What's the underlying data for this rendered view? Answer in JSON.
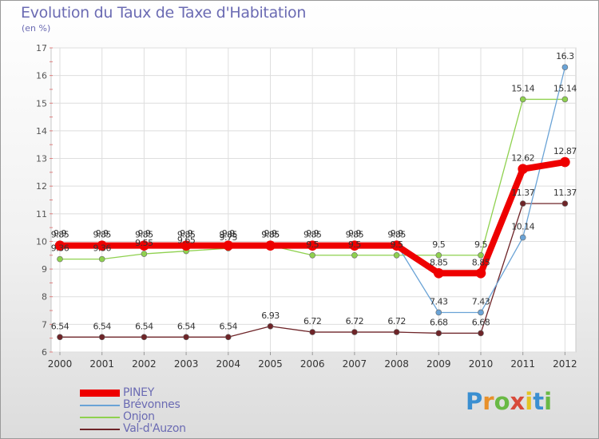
{
  "header": {
    "title": "Evolution du Taux de Taxe d'Habitation",
    "unit": "(en %)"
  },
  "brand": {
    "letters": [
      "P",
      "r",
      "o",
      "x",
      "i",
      "t",
      "i"
    ],
    "colors": [
      "#3a8fd1",
      "#e8902a",
      "#69b944",
      "#d84a3a",
      "#e3c324",
      "#3a8fd1",
      "#69b944"
    ]
  },
  "chart_data": {
    "type": "line",
    "x": [
      "2000",
      "2001",
      "2002",
      "2003",
      "2004",
      "2005",
      "2006",
      "2007",
      "2008",
      "2009",
      "2010",
      "2011",
      "2012"
    ],
    "ylim": [
      6,
      17
    ],
    "yticks": [
      "6",
      "7",
      "8",
      "9",
      "10",
      "11",
      "12",
      "13",
      "14",
      "15",
      "16",
      "17"
    ],
    "grid": true,
    "legend_position": "bottom-left",
    "series": [
      {
        "name": "Val-d'Auzon",
        "color": "#6e2428",
        "values": [
          6.54,
          6.54,
          6.54,
          6.54,
          6.54,
          6.93,
          6.72,
          6.72,
          6.72,
          6.68,
          6.68,
          11.37,
          11.37
        ],
        "labels": [
          "6.54",
          "6.54",
          "6.54",
          "6.54",
          "6.54",
          "6.93",
          "6.72",
          "6.72",
          "6.72",
          "6.68",
          "6.68",
          "11.37",
          "11.37"
        ]
      },
      {
        "name": "Onjon",
        "color": "#8fd14f",
        "values": [
          9.36,
          9.36,
          9.55,
          9.65,
          9.75,
          9.85,
          9.5,
          9.5,
          9.5,
          9.5,
          9.5,
          15.14,
          15.14
        ],
        "labels": [
          "9.36",
          "9.36",
          "9.55",
          "9.65",
          "9.75",
          "9.85",
          "9.5",
          "9.5",
          "9.5",
          "9.5",
          "9.5",
          "15.14",
          "15.14"
        ]
      },
      {
        "name": "Brévonnes",
        "color": "#6aa3d6",
        "values": [
          9.9,
          9.9,
          9.9,
          9.9,
          9.9,
          9.9,
          9.9,
          9.9,
          9.9,
          7.43,
          7.43,
          10.14,
          16.3
        ],
        "labels": [
          "9.9",
          "9.9",
          "9.9",
          "9.9",
          "9.9",
          "9.9",
          "9.9",
          "9.9",
          "9.9",
          "7.43",
          "7.43",
          "10.14",
          "16.3"
        ]
      },
      {
        "name": "PINEY",
        "color": "#ee0000",
        "values": [
          9.85,
          9.85,
          9.85,
          9.85,
          9.85,
          9.85,
          9.85,
          9.85,
          9.85,
          8.85,
          8.85,
          12.62,
          12.87
        ],
        "labels": [
          "9.85",
          "9.85",
          "9.85",
          "9.85",
          "9.85",
          "9.85",
          "9.85",
          "9.85",
          "9.85",
          "8.85",
          "8.85",
          "12.62",
          "12.87"
        ]
      }
    ],
    "legend": [
      "PINEY",
      "Brévonnes",
      "Onjon",
      "Val-d'Auzon"
    ]
  }
}
